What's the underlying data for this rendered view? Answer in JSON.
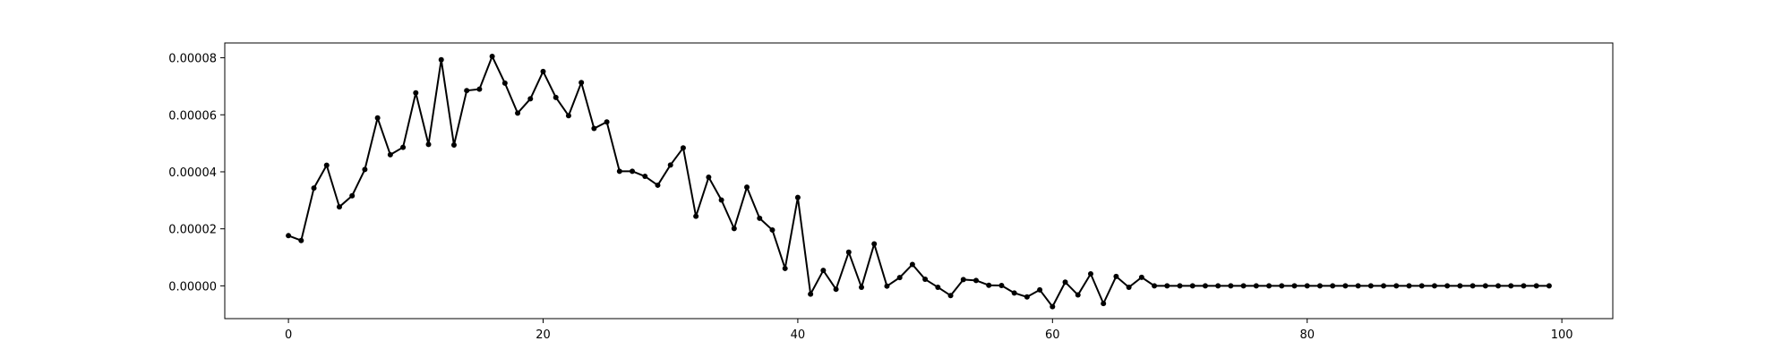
{
  "chart_data": {
    "type": "line",
    "title": "",
    "xlabel": "",
    "ylabel": "",
    "xlim": [
      -5,
      104
    ],
    "ylim": [
      -1.15e-05,
      8.52e-05
    ],
    "x_ticks": [
      0,
      20,
      40,
      60,
      80,
      100
    ],
    "x_tick_labels": [
      "0",
      "20",
      "40",
      "60",
      "80",
      "100"
    ],
    "y_ticks": [
      0,
      2e-05,
      4e-05,
      6e-05,
      8e-05
    ],
    "y_tick_labels": [
      "0.00000",
      "0.00002",
      "0.00004",
      "0.00006",
      "0.00008"
    ],
    "grid": false,
    "legend": "none",
    "colors": {
      "line": "#000000",
      "marker": "#000000",
      "axes": "#000000"
    },
    "series": [
      {
        "marker": "dot",
        "x": [
          0,
          1,
          2,
          3,
          4,
          5,
          6,
          7,
          8,
          9,
          10,
          11,
          12,
          13,
          14,
          15,
          16,
          17,
          18,
          19,
          20,
          21,
          22,
          23,
          24,
          25,
          26,
          27,
          28,
          29,
          30,
          31,
          32,
          33,
          34,
          35,
          36,
          37,
          38,
          39,
          40,
          41,
          42,
          43,
          44,
          45,
          46,
          47,
          48,
          49,
          50,
          51,
          52,
          53,
          54,
          55,
          56,
          57,
          58,
          59,
          60,
          61,
          62,
          63,
          64,
          65,
          66,
          67,
          68,
          69,
          70,
          71,
          72,
          73,
          74,
          75,
          76,
          77,
          78,
          79,
          80,
          81,
          82,
          83,
          84,
          85,
          86,
          87,
          88,
          89,
          90,
          91,
          92,
          93,
          94,
          95,
          96,
          97,
          98,
          99
        ],
        "y": [
          1.76e-05,
          1.59e-05,
          3.43e-05,
          4.23e-05,
          2.77e-05,
          3.16e-05,
          4.08e-05,
          5.89e-05,
          4.6e-05,
          4.86e-05,
          6.77e-05,
          4.96e-05,
          7.93e-05,
          4.94e-05,
          6.85e-05,
          6.9e-05,
          8.05e-05,
          7.11e-05,
          6.06e-05,
          6.56e-05,
          7.52e-05,
          6.61e-05,
          5.97e-05,
          7.13e-05,
          5.52e-05,
          5.75e-05,
          4.02e-05,
          4.02e-05,
          3.84e-05,
          3.53e-05,
          4.24e-05,
          4.84e-05,
          2.44e-05,
          3.81e-05,
          3.01e-05,
          2.01e-05,
          3.46e-05,
          2.37e-05,
          1.96e-05,
          6.1e-06,
          3.1e-05,
          -2.9e-06,
          5.4e-06,
          -1.2e-06,
          1.18e-05,
          -5e-07,
          1.47e-05,
          -1e-07,
          2.9e-06,
          7.5e-06,
          2.3e-06,
          -5e-07,
          -3.4e-06,
          2.2e-06,
          1.9e-06,
          2e-07,
          1e-07,
          -2.5e-06,
          -3.9e-06,
          -1.4e-06,
          -7.3e-06,
          1.3e-06,
          -3.2e-06,
          4.2e-06,
          -6.2e-06,
          3.3e-06,
          -5e-07,
          3e-06,
          0,
          0,
          0,
          0,
          0,
          0,
          0,
          0,
          0,
          0,
          0,
          0,
          0,
          0,
          0,
          0,
          0,
          0,
          0,
          0,
          0,
          0,
          0,
          0,
          0,
          0,
          0,
          0,
          0,
          0,
          0,
          0
        ]
      }
    ]
  }
}
